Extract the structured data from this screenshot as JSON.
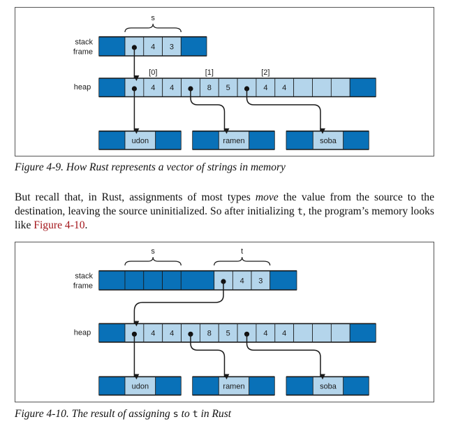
{
  "colors": {
    "dark_cell": "#0971b8",
    "light_cell": "#b4d5eb",
    "link": "#a3161b"
  },
  "figure1": {
    "stack_label": [
      "stack",
      "frame"
    ],
    "heap_label": "heap",
    "variables": [
      {
        "name": "s"
      }
    ],
    "stack_cells": [
      "",
      "4",
      "3"
    ],
    "indices": [
      "[0]",
      "[1]",
      "[2]"
    ],
    "heap_cells": [
      "",
      "4",
      "4",
      "",
      "8",
      "5",
      "",
      "4",
      "4",
      "",
      "",
      ""
    ],
    "strings": [
      "udon",
      "ramen",
      "soba"
    ],
    "caption": "Figure 4-9. How Rust represents a vector of strings in memory"
  },
  "paragraph": {
    "part1": "But recall that, in Rust, assignments of most types ",
    "emphasis": "move",
    "part2": " the value from the source to the destination, leaving the source uninitialized. So after initializing ",
    "code": "t",
    "part3": ", the program’s memory looks like ",
    "link": "Figure 4-10",
    "part4": "."
  },
  "figure2": {
    "stack_label": [
      "stack",
      "frame"
    ],
    "heap_label": "heap",
    "variables": [
      {
        "name": "s"
      },
      {
        "name": "t"
      }
    ],
    "stack_cells": [
      "",
      "4",
      "3"
    ],
    "heap_cells": [
      "",
      "4",
      "4",
      "",
      "8",
      "5",
      "",
      "4",
      "4",
      "",
      "",
      ""
    ],
    "strings": [
      "udon",
      "ramen",
      "soba"
    ],
    "caption_prefix": "Figure 4-10. The result of assigning ",
    "caption_code1": "s",
    "caption_mid": " to ",
    "caption_code2": "t",
    "caption_suffix": " in Rust"
  }
}
